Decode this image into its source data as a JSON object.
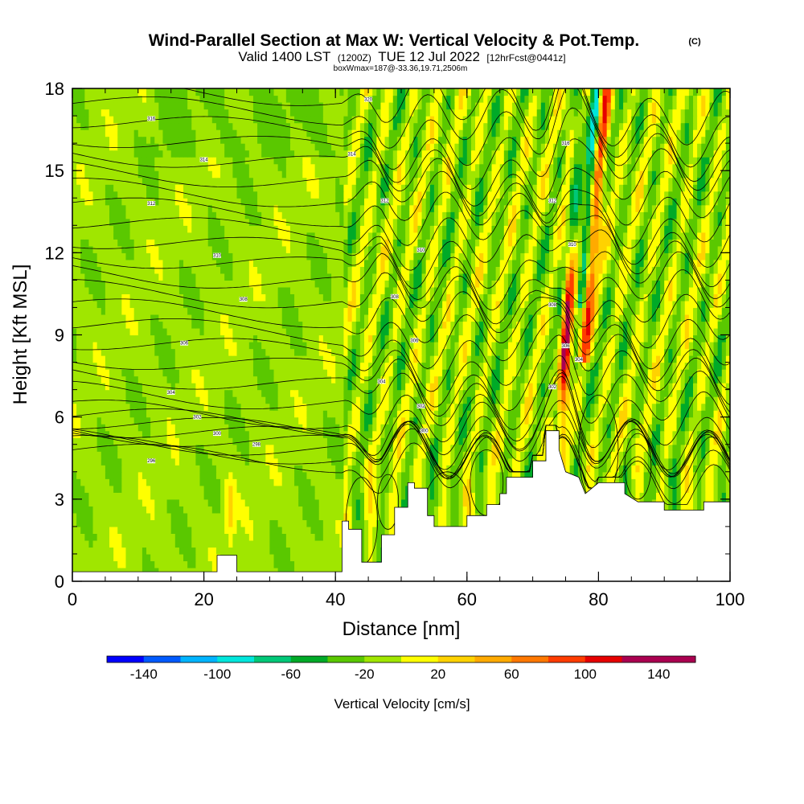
{
  "title": {
    "main": "Wind-Parallel Section at Max W: Vertical Velocity & Pot.Temp.",
    "badge": "(C)",
    "sub_valid": "Valid 1400 LST",
    "sub_utc": "(1200Z)",
    "sub_date": "TUE 12 Jul 2022",
    "sub_fcst": "[12hrFcst@0441z]",
    "box_info": "boxWmax=187@-33.36,19.71,2506m"
  },
  "chart_data": {
    "type": "heatmap",
    "title": "Wind-Parallel Section at Max W: Vertical Velocity & Pot.Temp.",
    "xlabel": "Distance [nm]",
    "ylabel": "Height [Kft MSL]",
    "xlim": [
      0,
      100
    ],
    "ylim": [
      0,
      18
    ],
    "x_ticks": [
      "0",
      "20",
      "40",
      "60",
      "80",
      "100"
    ],
    "y_ticks": [
      "0",
      "3",
      "6",
      "9",
      "12",
      "15",
      "18"
    ],
    "colorbar": {
      "label": "Vertical Velocity [cm/s]",
      "levels": [
        -160,
        -140,
        -120,
        -100,
        -80,
        -60,
        -40,
        -20,
        0,
        20,
        40,
        60,
        80,
        100,
        120,
        140,
        160
      ],
      "tick_labels": [
        "-140",
        "-100",
        "-60",
        "-20",
        "20",
        "60",
        "100",
        "140"
      ],
      "tick_values": [
        -140,
        -100,
        -60,
        -20,
        20,
        60,
        100,
        140
      ],
      "colors": [
        "#0000ff",
        "#005aff",
        "#00b4ff",
        "#00e6dc",
        "#00c878",
        "#00aa28",
        "#5ac800",
        "#a0e600",
        "#ffff00",
        "#ffd200",
        "#ffaa00",
        "#ff7800",
        "#ff3c00",
        "#e60000",
        "#aa0050",
        "#aa0050"
      ]
    },
    "terrain_kft": [
      [
        0,
        0.35
      ],
      [
        22,
        0.35
      ],
      [
        22,
        0.95
      ],
      [
        25,
        0.95
      ],
      [
        25,
        0.35
      ],
      [
        41,
        0.35
      ],
      [
        41,
        2.2
      ],
      [
        42,
        2.2
      ],
      [
        42,
        1.9
      ],
      [
        44,
        1.9
      ],
      [
        44,
        0.7
      ],
      [
        47,
        0.7
      ],
      [
        47,
        1.7
      ],
      [
        49,
        1.7
      ],
      [
        49,
        2.7
      ],
      [
        51,
        2.7
      ],
      [
        51,
        3.6
      ],
      [
        52,
        3.6
      ],
      [
        52,
        3.4
      ],
      [
        54,
        3.4
      ],
      [
        54,
        2.4
      ],
      [
        55,
        2.4
      ],
      [
        55,
        2.0
      ],
      [
        60,
        2.0
      ],
      [
        60,
        2.4
      ],
      [
        63,
        2.4
      ],
      [
        63,
        2.8
      ],
      [
        65,
        2.8
      ],
      [
        65,
        3.2
      ],
      [
        66,
        3.2
      ],
      [
        66,
        3.8
      ],
      [
        70,
        3.8
      ],
      [
        70,
        4.4
      ],
      [
        72,
        4.4
      ],
      [
        72,
        5.5
      ],
      [
        74,
        5.5
      ],
      [
        74,
        4.8
      ],
      [
        75,
        4.0
      ],
      [
        77,
        3.8
      ],
      [
        78,
        3.2
      ],
      [
        80,
        3.6
      ],
      [
        84,
        3.6
      ],
      [
        84,
        3.2
      ],
      [
        86,
        2.9
      ],
      [
        90,
        2.9
      ],
      [
        90,
        2.6
      ],
      [
        96,
        2.6
      ],
      [
        96,
        2.9
      ],
      [
        100,
        2.9
      ]
    ],
    "theta_labels": [
      {
        "x": 12,
        "y": 16.9,
        "text": "316"
      },
      {
        "x": 45,
        "y": 17.6,
        "text": "320"
      },
      {
        "x": 20,
        "y": 15.4,
        "text": "314"
      },
      {
        "x": 42.5,
        "y": 15.6,
        "text": "314"
      },
      {
        "x": 12,
        "y": 13.8,
        "text": "312"
      },
      {
        "x": 47.5,
        "y": 13.9,
        "text": "312"
      },
      {
        "x": 73,
        "y": 13.9,
        "text": "312"
      },
      {
        "x": 75,
        "y": 16.0,
        "text": "316"
      },
      {
        "x": 22,
        "y": 11.9,
        "text": "310"
      },
      {
        "x": 53,
        "y": 12.1,
        "text": "310"
      },
      {
        "x": 76,
        "y": 12.3,
        "text": "310"
      },
      {
        "x": 26,
        "y": 10.3,
        "text": "308"
      },
      {
        "x": 49,
        "y": 10.4,
        "text": "308"
      },
      {
        "x": 73,
        "y": 10.1,
        "text": "308"
      },
      {
        "x": 17,
        "y": 8.7,
        "text": "306"
      },
      {
        "x": 52,
        "y": 8.8,
        "text": "306"
      },
      {
        "x": 75,
        "y": 8.6,
        "text": "306"
      },
      {
        "x": 77,
        "y": 8.1,
        "text": "304"
      },
      {
        "x": 15,
        "y": 6.9,
        "text": "304"
      },
      {
        "x": 47,
        "y": 7.3,
        "text": "304"
      },
      {
        "x": 73,
        "y": 7.1,
        "text": "302"
      },
      {
        "x": 19,
        "y": 6.0,
        "text": "302"
      },
      {
        "x": 53,
        "y": 6.4,
        "text": "302"
      },
      {
        "x": 22,
        "y": 5.4,
        "text": "300"
      },
      {
        "x": 53.5,
        "y": 5.5,
        "text": "300"
      },
      {
        "x": 28,
        "y": 5.0,
        "text": "298"
      },
      {
        "x": 12,
        "y": 4.4,
        "text": "296"
      }
    ]
  }
}
